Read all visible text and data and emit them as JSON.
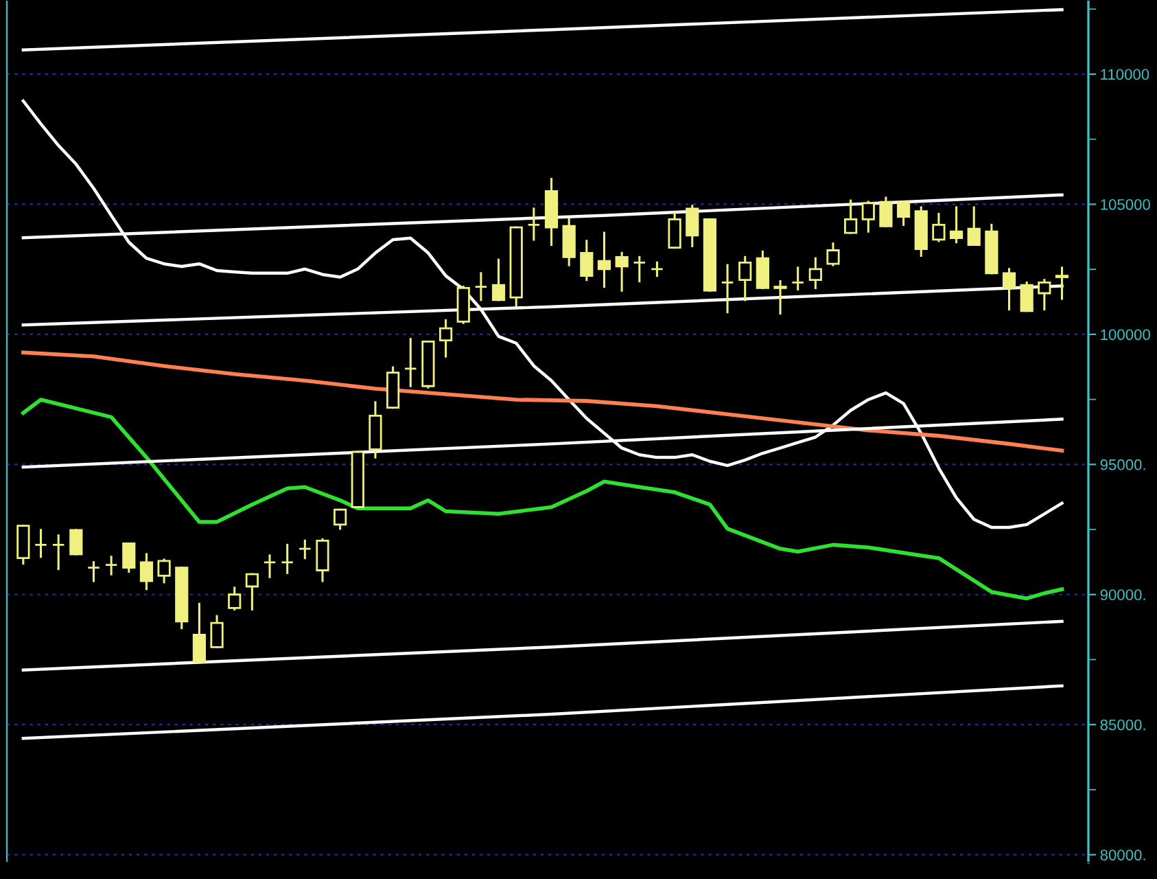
{
  "chart_data": {
    "type": "candlestick",
    "categories": [
      null,
      null,
      null,
      null,
      null,
      null,
      null,
      null,
      null,
      null,
      null,
      null,
      null,
      null,
      null,
      null,
      null,
      null,
      null,
      null,
      null,
      null,
      null,
      null,
      null,
      null,
      null,
      null,
      null,
      null,
      null,
      null,
      null,
      null,
      null,
      null,
      null,
      null,
      null,
      null,
      null,
      null,
      null,
      null,
      null,
      null,
      null,
      null,
      null,
      null,
      null,
      null,
      null,
      null,
      null,
      null,
      null,
      null,
      null,
      null
    ],
    "color": "#f0f080",
    "ohlc": [
      [
        91400,
        92640,
        91190,
        92640
      ],
      [
        91910,
        92480,
        91450,
        91910
      ],
      [
        91910,
        92270,
        90980,
        91910
      ],
      [
        92480,
        92480,
        91550,
        91550
      ],
      [
        91030,
        91240,
        90520,
        91030
      ],
      [
        91140,
        91450,
        90780,
        91140
      ],
      [
        91960,
        91960,
        90880,
        91030
      ],
      [
        91240,
        91550,
        90210,
        90520
      ],
      [
        90720,
        91340,
        90470,
        91290
      ],
      [
        91030,
        91030,
        88710,
        88970
      ],
      [
        88450,
        89640,
        87420,
        87420
      ],
      [
        87980,
        89170,
        87980,
        88910
      ],
      [
        89480,
        90260,
        89430,
        90000
      ],
      [
        90310,
        90780,
        89430,
        90780
      ],
      [
        91240,
        91500,
        90670,
        91240
      ],
      [
        91240,
        91910,
        90830,
        91240
      ],
      [
        91760,
        92070,
        91400,
        91760
      ],
      [
        90930,
        92120,
        90520,
        92070
      ],
      [
        92690,
        93260,
        92530,
        93260
      ],
      [
        93360,
        95480,
        93360,
        95480
      ],
      [
        95580,
        97390,
        95270,
        96870
      ],
      [
        97180,
        98730,
        97180,
        98530
      ],
      [
        98680,
        99820,
        98010,
        98680
      ],
      [
        98010,
        99720,
        97960,
        99720
      ],
      [
        99770,
        100540,
        99150,
        100230
      ],
      [
        100490,
        101830,
        100440,
        101780
      ],
      [
        101830,
        102350,
        101320,
        101830
      ],
      [
        101890,
        102870,
        101320,
        101320
      ],
      [
        101420,
        104110,
        101110,
        104110
      ],
      [
        104210,
        104830,
        103640,
        104210
      ],
      [
        105500,
        105970,
        103440,
        104110
      ],
      [
        104160,
        104420,
        102660,
        102970
      ],
      [
        103130,
        103590,
        102090,
        102250
      ],
      [
        102820,
        103900,
        101830,
        102510
      ],
      [
        102970,
        103130,
        101680,
        102610
      ],
      [
        102760,
        102970,
        102040,
        102760
      ],
      [
        102510,
        102760,
        102250,
        102510
      ],
      [
        103330,
        104680,
        103330,
        104420
      ],
      [
        104830,
        104940,
        103390,
        103800
      ],
      [
        104420,
        104420,
        101680,
        101680
      ],
      [
        101990,
        102660,
        100850,
        101990
      ],
      [
        102090,
        102970,
        101320,
        102760
      ],
      [
        102920,
        103180,
        101780,
        101780
      ],
      [
        101830,
        102040,
        100800,
        101780
      ],
      [
        101990,
        102560,
        101730,
        101990
      ],
      [
        102090,
        102920,
        101780,
        102510
      ],
      [
        102710,
        103490,
        102660,
        103230
      ],
      [
        103900,
        105140,
        103900,
        104420
      ],
      [
        104420,
        105090,
        103950,
        105040
      ],
      [
        105090,
        105250,
        104160,
        104160
      ],
      [
        105090,
        105090,
        104210,
        104520
      ],
      [
        104730,
        104880,
        103020,
        103280
      ],
      [
        103640,
        104630,
        103590,
        104210
      ],
      [
        103950,
        104880,
        103540,
        103700
      ],
      [
        104060,
        104880,
        103440,
        103440
      ],
      [
        103950,
        104210,
        102350,
        102350
      ],
      [
        102350,
        102510,
        100960,
        101780
      ],
      [
        101890,
        101990,
        100900,
        100900
      ],
      [
        101580,
        102090,
        100960,
        101990
      ],
      [
        102250,
        102560,
        101370,
        102200
      ]
    ],
    "series": [
      {
        "type": "line",
        "color": "#ffffff",
        "values": [
          108970,
          108090,
          107260,
          106540,
          105610,
          104570,
          103540,
          102920,
          102710,
          102610,
          102710,
          102450,
          102400,
          102350,
          102350,
          102350,
          102510,
          102300,
          102200,
          102510,
          103130,
          103640,
          103700,
          103130,
          102250,
          101730,
          100960,
          99920,
          99660,
          98790,
          98220,
          97490,
          96770,
          96200,
          95630,
          95370,
          95270,
          95270,
          95370,
          95120,
          94960,
          95170,
          95430,
          95630,
          95840,
          96050,
          96510,
          97080,
          97490,
          97750,
          97340,
          96200,
          94860,
          93720,
          92890,
          92580,
          92580,
          92690,
          93100,
          93510
        ]
      },
      {
        "type": "line",
        "color": "#ff8050",
        "values": [
          99300,
          null,
          null,
          null,
          99150,
          null,
          null,
          null,
          98780,
          null,
          null,
          null,
          98470,
          null,
          null,
          null,
          98220,
          null,
          null,
          null,
          97910,
          null,
          null,
          null,
          97700,
          null,
          null,
          null,
          97490,
          null,
          null,
          null,
          97440,
          null,
          null,
          null,
          97240,
          null,
          null,
          null,
          96930,
          null,
          null,
          null,
          96620,
          null,
          null,
          null,
          96310,
          null,
          null,
          null,
          96100,
          null,
          null,
          null,
          95790,
          null,
          null,
          95530
        ]
      },
      {
        "type": "line",
        "color": "#30e030",
        "values": [
          96980,
          97490,
          null,
          null,
          null,
          96820,
          null,
          95270,
          null,
          null,
          92790,
          92790,
          null,
          93460,
          null,
          94080,
          94130,
          null,
          93620,
          93310,
          null,
          null,
          93310,
          93620,
          93200,
          null,
          null,
          93100,
          null,
          null,
          93360,
          null,
          93980,
          94340,
          null,
          94130,
          null,
          93930,
          null,
          93460,
          92530,
          null,
          null,
          91760,
          91650,
          null,
          91910,
          null,
          91810,
          null,
          null,
          91500,
          91400,
          null,
          null,
          90100,
          null,
          89850,
          90050,
          90200
        ]
      },
      {
        "type": "line",
        "color": "#ffffff",
        "values": [
          110930,
          null,
          null,
          null,
          null,
          null,
          null,
          null,
          null,
          null,
          null,
          null,
          null,
          null,
          null,
          null,
          null,
          null,
          null,
          null,
          null,
          null,
          null,
          null,
          null,
          null,
          null,
          null,
          null,
          null,
          111710,
          null,
          null,
          null,
          null,
          null,
          null,
          null,
          null,
          null,
          null,
          null,
          null,
          null,
          null,
          null,
          null,
          null,
          null,
          null,
          null,
          null,
          null,
          null,
          null,
          null,
          null,
          null,
          null,
          112480
        ]
      },
      {
        "type": "line",
        "color": "#ffffff",
        "values": [
          103710,
          null,
          null,
          null,
          null,
          null,
          null,
          null,
          null,
          null,
          null,
          null,
          null,
          null,
          null,
          null,
          null,
          null,
          null,
          null,
          null,
          null,
          null,
          null,
          null,
          null,
          null,
          null,
          null,
          null,
          null,
          null,
          null,
          104570,
          null,
          null,
          null,
          null,
          null,
          null,
          null,
          null,
          null,
          null,
          null,
          null,
          null,
          null,
          null,
          null,
          null,
          null,
          null,
          null,
          null,
          null,
          null,
          null,
          null,
          105360
        ]
      },
      {
        "type": "line",
        "color": "#ffffff",
        "values": [
          100360,
          null,
          null,
          null,
          null,
          null,
          null,
          null,
          null,
          null,
          null,
          null,
          null,
          null,
          null,
          null,
          null,
          null,
          null,
          null,
          null,
          null,
          null,
          null,
          null,
          null,
          null,
          null,
          null,
          null,
          101060,
          null,
          null,
          null,
          null,
          null,
          null,
          null,
          null,
          null,
          null,
          null,
          null,
          null,
          null,
          null,
          null,
          null,
          null,
          null,
          null,
          null,
          null,
          null,
          null,
          null,
          null,
          null,
          null,
          101860
        ]
      },
      {
        "type": "line",
        "color": "#ffffff",
        "values": [
          94900,
          null,
          null,
          null,
          null,
          null,
          null,
          null,
          null,
          null,
          null,
          null,
          null,
          null,
          null,
          null,
          null,
          null,
          null,
          null,
          null,
          null,
          null,
          null,
          null,
          null,
          null,
          null,
          null,
          null,
          95790,
          null,
          null,
          null,
          null,
          null,
          null,
          null,
          null,
          null,
          null,
          null,
          null,
          null,
          null,
          null,
          null,
          null,
          null,
          null,
          null,
          null,
          null,
          null,
          null,
          null,
          null,
          null,
          null,
          96740
        ]
      },
      {
        "type": "line",
        "color": "#ffffff",
        "values": [
          87100,
          null,
          null,
          null,
          null,
          null,
          null,
          null,
          null,
          null,
          null,
          null,
          null,
          null,
          null,
          null,
          null,
          null,
          null,
          null,
          null,
          null,
          null,
          null,
          null,
          null,
          null,
          null,
          null,
          null,
          87980,
          null,
          null,
          null,
          null,
          null,
          null,
          null,
          null,
          null,
          null,
          null,
          null,
          null,
          null,
          null,
          null,
          null,
          null,
          null,
          null,
          null,
          null,
          null,
          null,
          null,
          null,
          null,
          null,
          88970
        ]
      },
      {
        "type": "line",
        "color": "#ffffff",
        "values": [
          84470,
          null,
          null,
          null,
          null,
          null,
          null,
          null,
          null,
          null,
          null,
          null,
          null,
          null,
          null,
          null,
          null,
          null,
          null,
          null,
          null,
          null,
          null,
          null,
          null,
          null,
          null,
          null,
          null,
          null,
          85400,
          null,
          null,
          null,
          null,
          null,
          null,
          null,
          null,
          null,
          null,
          null,
          null,
          null,
          null,
          null,
          null,
          null,
          null,
          null,
          null,
          null,
          null,
          null,
          null,
          null,
          null,
          null,
          null,
          86490
        ]
      }
    ],
    "ylim": [
      79700,
      112850
    ],
    "yticks": [
      {
        "value": 80000,
        "label": "80000."
      },
      {
        "value": 82500,
        "label": null
      },
      {
        "value": 85000,
        "label": "85000."
      },
      {
        "value": 87500,
        "label": null
      },
      {
        "value": 90000,
        "label": "90000."
      },
      {
        "value": 92500,
        "label": null
      },
      {
        "value": 95000,
        "label": "95000."
      },
      {
        "value": 97500,
        "label": null
      },
      {
        "value": 100000,
        "label": "100000"
      },
      {
        "value": 102500,
        "label": null
      },
      {
        "value": 105000,
        "label": "105000"
      },
      {
        "value": 107500,
        "label": null
      },
      {
        "value": 110000,
        "label": "110000"
      },
      {
        "value": 112500,
        "label": null
      }
    ],
    "grid": "y",
    "tick_labels": "y"
  }
}
